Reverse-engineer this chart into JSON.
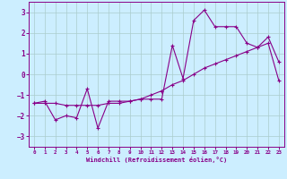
{
  "xlabel": "Windchill (Refroidissement éolien,°C)",
  "x_hours": [
    0,
    1,
    2,
    3,
    4,
    5,
    6,
    7,
    8,
    9,
    10,
    11,
    12,
    13,
    14,
    15,
    16,
    17,
    18,
    19,
    20,
    21,
    22,
    23
  ],
  "line1_y": [
    -1.4,
    -1.3,
    -2.2,
    -2.0,
    -2.1,
    -0.7,
    -2.6,
    -1.3,
    -1.3,
    -1.3,
    -1.2,
    -1.2,
    -1.2,
    1.4,
    -0.2,
    2.6,
    3.1,
    2.3,
    2.3,
    2.3,
    1.5,
    1.3,
    1.8,
    0.6
  ],
  "line2_y": [
    -1.4,
    -1.4,
    -1.4,
    -1.5,
    -1.5,
    -1.5,
    -1.5,
    -1.4,
    -1.4,
    -1.3,
    -1.2,
    -1.0,
    -0.8,
    -0.5,
    -0.3,
    0.0,
    0.3,
    0.5,
    0.7,
    0.9,
    1.1,
    1.3,
    1.5,
    -0.3
  ],
  "line_color": "#880088",
  "background_color": "#cceeff",
  "grid_color": "#aacccc",
  "ylim": [
    -3.5,
    3.5
  ],
  "xlim": [
    -0.5,
    23.5
  ],
  "yticks": [
    -3,
    -2,
    -1,
    0,
    1,
    2,
    3
  ],
  "xticks": [
    0,
    1,
    2,
    3,
    4,
    5,
    6,
    7,
    8,
    9,
    10,
    11,
    12,
    13,
    14,
    15,
    16,
    17,
    18,
    19,
    20,
    21,
    22,
    23
  ]
}
